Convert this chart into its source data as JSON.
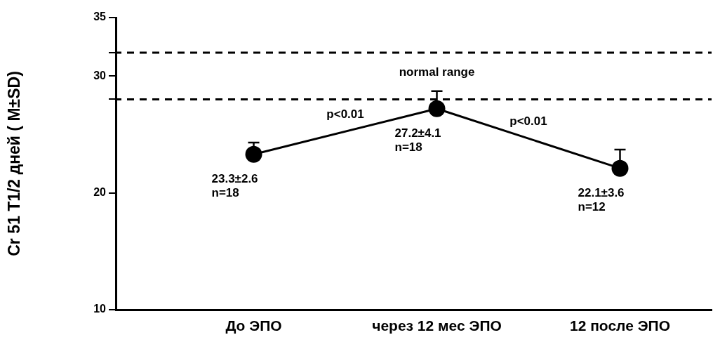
{
  "chart_data": {
    "type": "line",
    "ylabel": "Cr 51 T1/2 дней ( M±SD)",
    "categories": [
      "До ЭПО",
      "через 12 мес ЭПО",
      "12 после ЭПО"
    ],
    "series": [
      {
        "color": "#000000",
        "values": [
          23.3,
          27.2,
          22.1
        ],
        "errors": [
          [
            23.3,
            24.3
          ],
          [
            27.2,
            28.7
          ],
          [
            22.1,
            23.7
          ]
        ]
      }
    ],
    "ylim": [
      10,
      35
    ],
    "yticks": [
      10,
      20,
      {
        "value": 28,
        "label": null
      },
      30,
      {
        "value": 32,
        "label": null
      },
      35
    ],
    "ref_lines": [
      {
        "axis": "y",
        "value": 32,
        "color": "#000000",
        "line_style": "dashed"
      },
      {
        "axis": "y",
        "value": 28,
        "color": "#000000",
        "line_style": "dashed"
      }
    ],
    "annotations": [
      "normal range",
      "p<0.01",
      "p<0.01",
      {
        "text": "23.3±2.6\nn=18",
        "x": "До ЭПО",
        "y": 23.3
      },
      {
        "text": "27.2±4.1\nn=18",
        "x": "через 12 мес ЭПО",
        "y": 27.2
      },
      {
        "text": "22.1±3.6\nn=12",
        "x": "12 после ЭПО",
        "y": 22.1
      }
    ],
    "grid": false,
    "legend": false,
    "marker": "circle",
    "line_style": "solid"
  }
}
